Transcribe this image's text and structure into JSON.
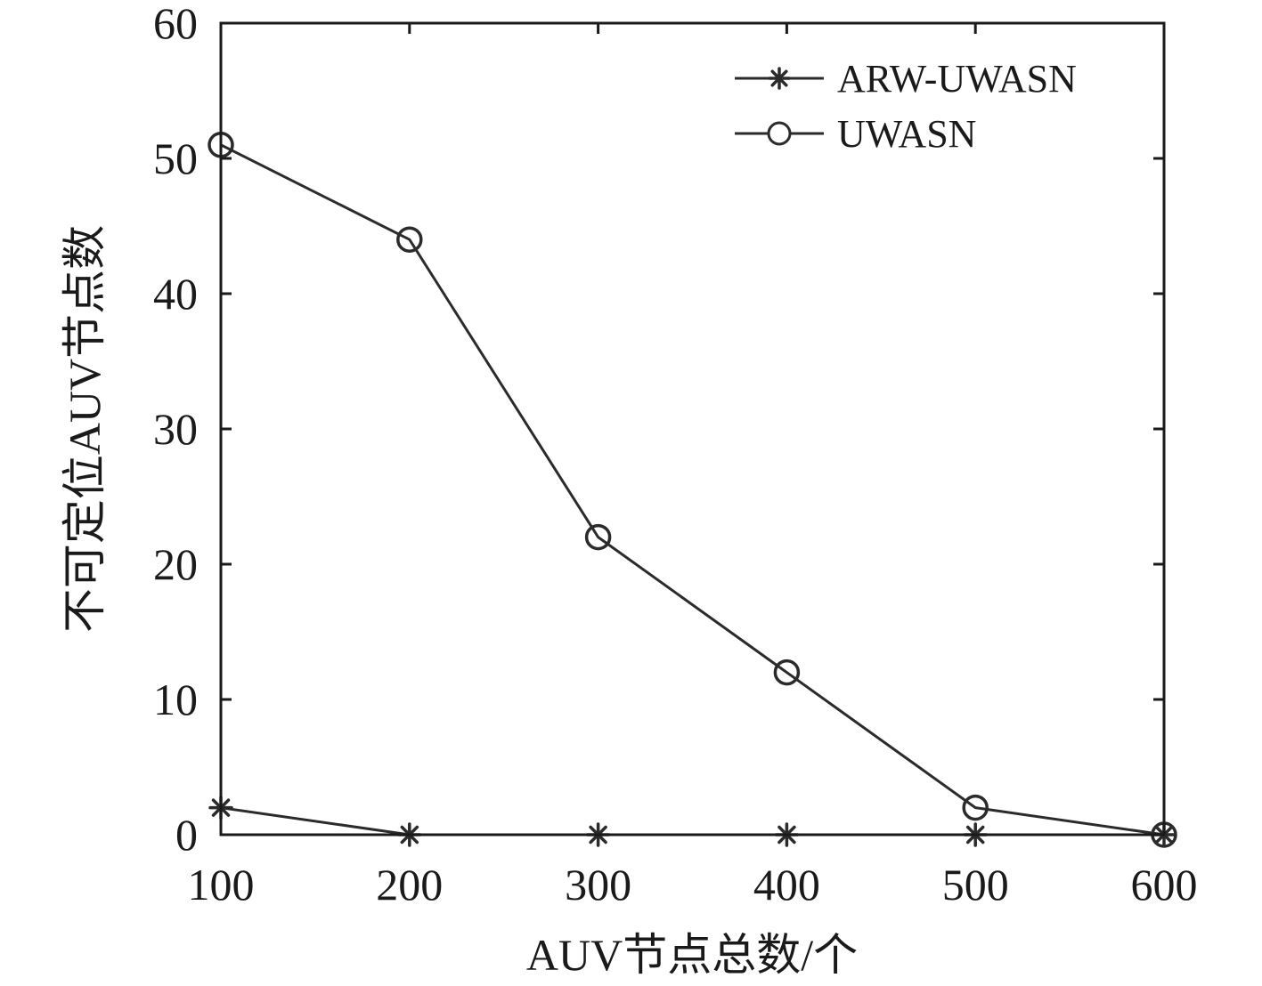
{
  "chart_data": {
    "type": "line",
    "title": "",
    "xlabel": "AUV节点总数/个",
    "ylabel": "不可定位AUV节点数",
    "x": [
      100,
      200,
      300,
      400,
      500,
      600
    ],
    "xlim": [
      100,
      600
    ],
    "ylim": [
      0,
      60
    ],
    "xticks": [
      "100",
      "200",
      "300",
      "400",
      "500",
      "600"
    ],
    "yticks": [
      "0",
      "10",
      "20",
      "30",
      "40",
      "50",
      "60"
    ],
    "grid": false,
    "legend_position": "top-right",
    "series": [
      {
        "name": "ARW-UWASN",
        "marker": "asterisk",
        "color": "#2b2b2b",
        "values": [
          2,
          0,
          0,
          0,
          0,
          0
        ]
      },
      {
        "name": "UWASN",
        "marker": "circle",
        "color": "#2b2b2b",
        "values": [
          51,
          44,
          22,
          12,
          2,
          0
        ]
      }
    ]
  }
}
